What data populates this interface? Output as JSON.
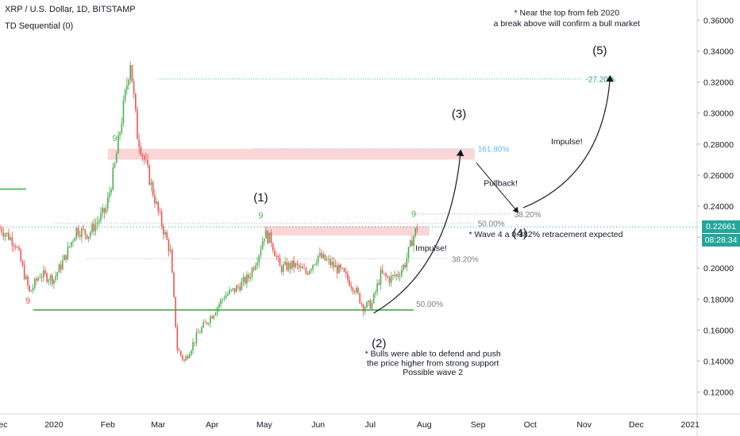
{
  "header": {
    "symbol": "XRP / U.S. Dollar, 1D, BITSTAMP",
    "indicator": "TD Sequential (0)"
  },
  "price_label": {
    "value": "0.22661",
    "countdown": "08:28:34",
    "color": "#26a69a"
  },
  "colors": {
    "up": "#4caf50",
    "down": "#ef5350",
    "support": "#66bb6a",
    "resistance_zone": "#f8c8c8",
    "fib_line": "#9e9e9e",
    "fib_ext": "#64b5f6",
    "target": "#26a69a",
    "axis_text": "#131722"
  },
  "chart_data": {
    "type": "candlestick",
    "y_axis": {
      "ticks": [
        "0.36000",
        "0.34000",
        "0.32000",
        "0.30000",
        "0.28000",
        "0.26000",
        "0.24000",
        "0.22000",
        "0.20000",
        "0.18000",
        "0.16000",
        "0.14000",
        "0.12000"
      ],
      "range": [
        0.106,
        0.373
      ]
    },
    "x_axis": {
      "ticks": [
        "Dec",
        "2020",
        "Feb",
        "Mar",
        "Apr",
        "May",
        "Jun",
        "Jul",
        "Aug",
        "Sep",
        "Oct",
        "Nov",
        "Dec",
        "2021"
      ],
      "range": [
        "2019-12-01",
        "2021-01-05"
      ]
    },
    "price_path": [
      {
        "date": "2019-12-01",
        "price": 0.226
      },
      {
        "date": "2019-12-10",
        "price": 0.216
      },
      {
        "date": "2019-12-18",
        "price": 0.184
      },
      {
        "date": "2019-12-24",
        "price": 0.196
      },
      {
        "date": "2020-01-01",
        "price": 0.193
      },
      {
        "date": "2020-01-07",
        "price": 0.206
      },
      {
        "date": "2020-01-14",
        "price": 0.225
      },
      {
        "date": "2020-01-21",
        "price": 0.222
      },
      {
        "date": "2020-01-31",
        "price": 0.238
      },
      {
        "date": "2020-02-05",
        "price": 0.266
      },
      {
        "date": "2020-02-14",
        "price": 0.334
      },
      {
        "date": "2020-02-18",
        "price": 0.286
      },
      {
        "date": "2020-02-24",
        "price": 0.262
      },
      {
        "date": "2020-03-01",
        "price": 0.236
      },
      {
        "date": "2020-03-08",
        "price": 0.21
      },
      {
        "date": "2020-03-12",
        "price": 0.148
      },
      {
        "date": "2020-03-16",
        "price": 0.14
      },
      {
        "date": "2020-03-24",
        "price": 0.158
      },
      {
        "date": "2020-04-01",
        "price": 0.17
      },
      {
        "date": "2020-04-08",
        "price": 0.182
      },
      {
        "date": "2020-04-14",
        "price": 0.186
      },
      {
        "date": "2020-04-22",
        "price": 0.194
      },
      {
        "date": "2020-04-28",
        "price": 0.21
      },
      {
        "date": "2020-05-01",
        "price": 0.222
      },
      {
        "date": "2020-05-05",
        "price": 0.218
      },
      {
        "date": "2020-05-10",
        "price": 0.2
      },
      {
        "date": "2020-05-18",
        "price": 0.202
      },
      {
        "date": "2020-05-25",
        "price": 0.197
      },
      {
        "date": "2020-06-01",
        "price": 0.208
      },
      {
        "date": "2020-06-08",
        "price": 0.203
      },
      {
        "date": "2020-06-15",
        "price": 0.197
      },
      {
        "date": "2020-06-22",
        "price": 0.187
      },
      {
        "date": "2020-06-27",
        "price": 0.175
      },
      {
        "date": "2020-07-02",
        "price": 0.177
      },
      {
        "date": "2020-07-07",
        "price": 0.196
      },
      {
        "date": "2020-07-12",
        "price": 0.193
      },
      {
        "date": "2020-07-17",
        "price": 0.196
      },
      {
        "date": "2020-07-21",
        "price": 0.203
      },
      {
        "date": "2020-07-25",
        "price": 0.218
      },
      {
        "date": "2020-07-28",
        "price": 0.2266
      }
    ],
    "support_line": {
      "price": 0.173,
      "from": "2019-12-20",
      "to": "2020-07-26",
      "label": "50.00%"
    },
    "left_stub": {
      "price": 0.251,
      "from": "2019-12-01",
      "to": "2019-12-16"
    },
    "resistance_zones": [
      {
        "from": "2020-02-01",
        "to": "2020-08-30",
        "bottom": 0.27,
        "top": 0.277
      },
      {
        "from": "2020-05-01",
        "to": "2020-08-04",
        "bottom": 0.221,
        "top": 0.227
      }
    ],
    "horizontal_levels": [
      {
        "price": 0.322,
        "from": "2020-03-01",
        "to": "2020-10-31",
        "label": "-27.20%",
        "kind": "target"
      },
      {
        "price": 0.277,
        "from": "2020-04-25",
        "to": "2020-08-30",
        "label": "161.80%",
        "kind": "fib_ext"
      },
      {
        "price": 0.235,
        "from": "2020-07-26",
        "to": "2020-09-20",
        "label": "38.20%",
        "kind": "fib"
      },
      {
        "price": 0.229,
        "from": "2020-01-01",
        "to": "2020-08-30",
        "label": "50.00%",
        "kind": "fib"
      },
      {
        "price": 0.2266,
        "from": "2019-12-01",
        "to": "2021-01-05",
        "label": "",
        "kind": "price"
      },
      {
        "price": 0.206,
        "from": "2020-01-20",
        "to": "2020-08-15",
        "label": "38.20%",
        "kind": "fib"
      }
    ],
    "wave_labels": [
      {
        "text": "(1)",
        "date": "2020-04-29",
        "price": 0.243
      },
      {
        "text": "(2)",
        "date": "2020-07-06",
        "price": 0.149
      },
      {
        "text": "(3)",
        "date": "2020-08-21",
        "price": 0.297
      },
      {
        "text": "(4)",
        "date": "2020-09-25",
        "price": 0.22
      },
      {
        "text": "(5)",
        "date": "2020-11-10",
        "price": 0.338
      }
    ],
    "td_marks": [
      {
        "text": "9",
        "date": "2019-12-17",
        "price": 0.177,
        "color": "#ef5350"
      },
      {
        "text": "9",
        "date": "2020-02-05",
        "price": 0.282,
        "color": "#4caf50"
      },
      {
        "text": "9",
        "date": "2020-04-29",
        "price": 0.232,
        "color": "#4caf50"
      },
      {
        "text": "9",
        "date": "2020-07-26",
        "price": 0.233,
        "color": "#4caf50"
      }
    ],
    "annotations": [
      {
        "text": "Impulse!",
        "date": "2020-08-05",
        "price": 0.211
      },
      {
        "text": "Pullback!",
        "date": "2020-09-14",
        "price": 0.253
      },
      {
        "text": "Impulse!",
        "date": "2020-10-22",
        "price": 0.28
      },
      {
        "text": "* Wave 4 a 0.382% retracement expected",
        "date": "2020-10-10",
        "price": 0.22
      },
      {
        "text": "* Near the top from feb 2020",
        "date": "2020-10-22",
        "price": 0.363
      },
      {
        "text": "a break above will confirm a bull market",
        "date": "2020-10-22",
        "price": 0.356
      },
      {
        "text": "* Bulls were able to defend and push",
        "date": "2020-08-06",
        "price": 0.143
      },
      {
        "text": "the price higher from strong support",
        "date": "2020-08-06",
        "price": 0.137
      },
      {
        "text": "Possible wave 2",
        "date": "2020-08-06",
        "price": 0.131
      }
    ]
  }
}
